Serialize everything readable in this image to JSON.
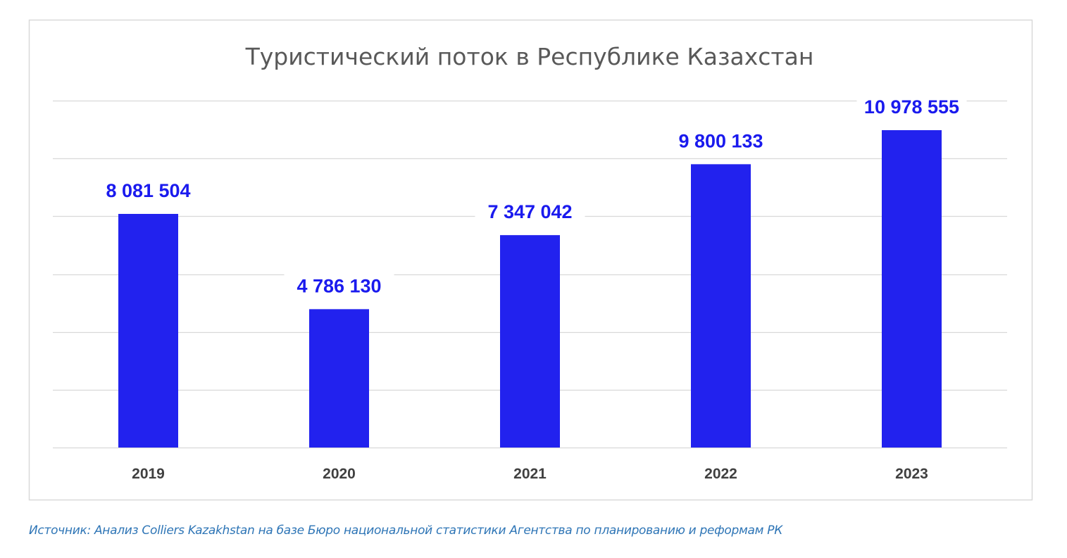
{
  "chart_data": {
    "type": "bar",
    "title": "Туристический  поток в Республике Казахстан",
    "categories": [
      "2019",
      "2020",
      "2021",
      "2022",
      "2023"
    ],
    "values": [
      8081504,
      4786130,
      7347042,
      9800133,
      10978555
    ],
    "data_labels": [
      "8 081 504",
      "4 786 130",
      "7 347 042",
      "9 800 133",
      "10 978 555"
    ],
    "xlabel": "",
    "ylabel": "",
    "ylim": [
      0,
      12000000
    ],
    "y_gridline_step": 2000000,
    "grid": true,
    "legend": "none",
    "colors": {
      "bar": "#2222ee",
      "label": "#1a1aee",
      "grid": "#d9d9d9"
    }
  },
  "source": "Источник:  Анализ Colliers Kazakhstan на базе Бюро национальной статистики  Агентства  по планированию и реформам РК"
}
